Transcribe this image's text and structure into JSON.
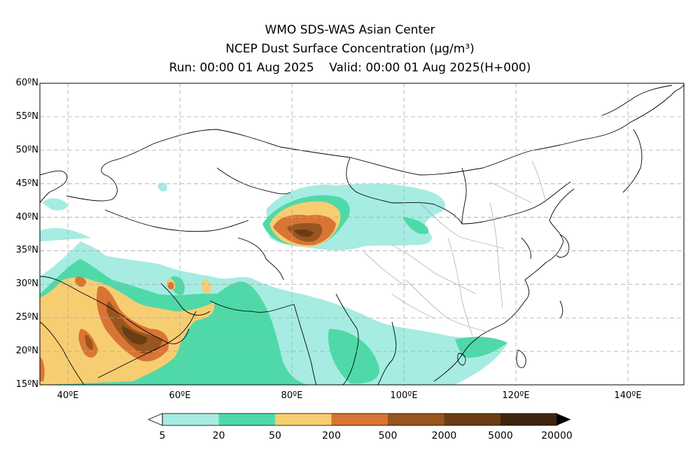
{
  "title": {
    "line1": "WMO SDS-WAS Asian Center",
    "line2": "NCEP Dust Surface Concentration (μg/m³)",
    "line3": "Run: 00:00 01 Aug 2025    Valid: 00:00 01 Aug 2025(H+000)"
  },
  "map": {
    "lon_range": [
      35,
      150
    ],
    "lat_range": [
      15,
      60
    ],
    "lat_labels": [
      "60ºN",
      "55ºN",
      "50ºN",
      "45ºN",
      "40ºN",
      "35ºN",
      "30ºN",
      "25ºN",
      "20ºN",
      "15ºN"
    ],
    "lon_labels": [
      "40ºE",
      "60ºE",
      "80ºE",
      "100ºE",
      "120ºE",
      "140ºE"
    ],
    "grid": true,
    "grid_style": "dashed"
  },
  "colorbar": {
    "levels": [
      "5",
      "20",
      "50",
      "200",
      "500",
      "2000",
      "5000",
      "20000"
    ],
    "colors": [
      "#a6ece3",
      "#4fd9a8",
      "#f7cd72",
      "#d87534",
      "#98551e",
      "#6b3d14",
      "#3f2510"
    ],
    "extend": "both"
  }
}
